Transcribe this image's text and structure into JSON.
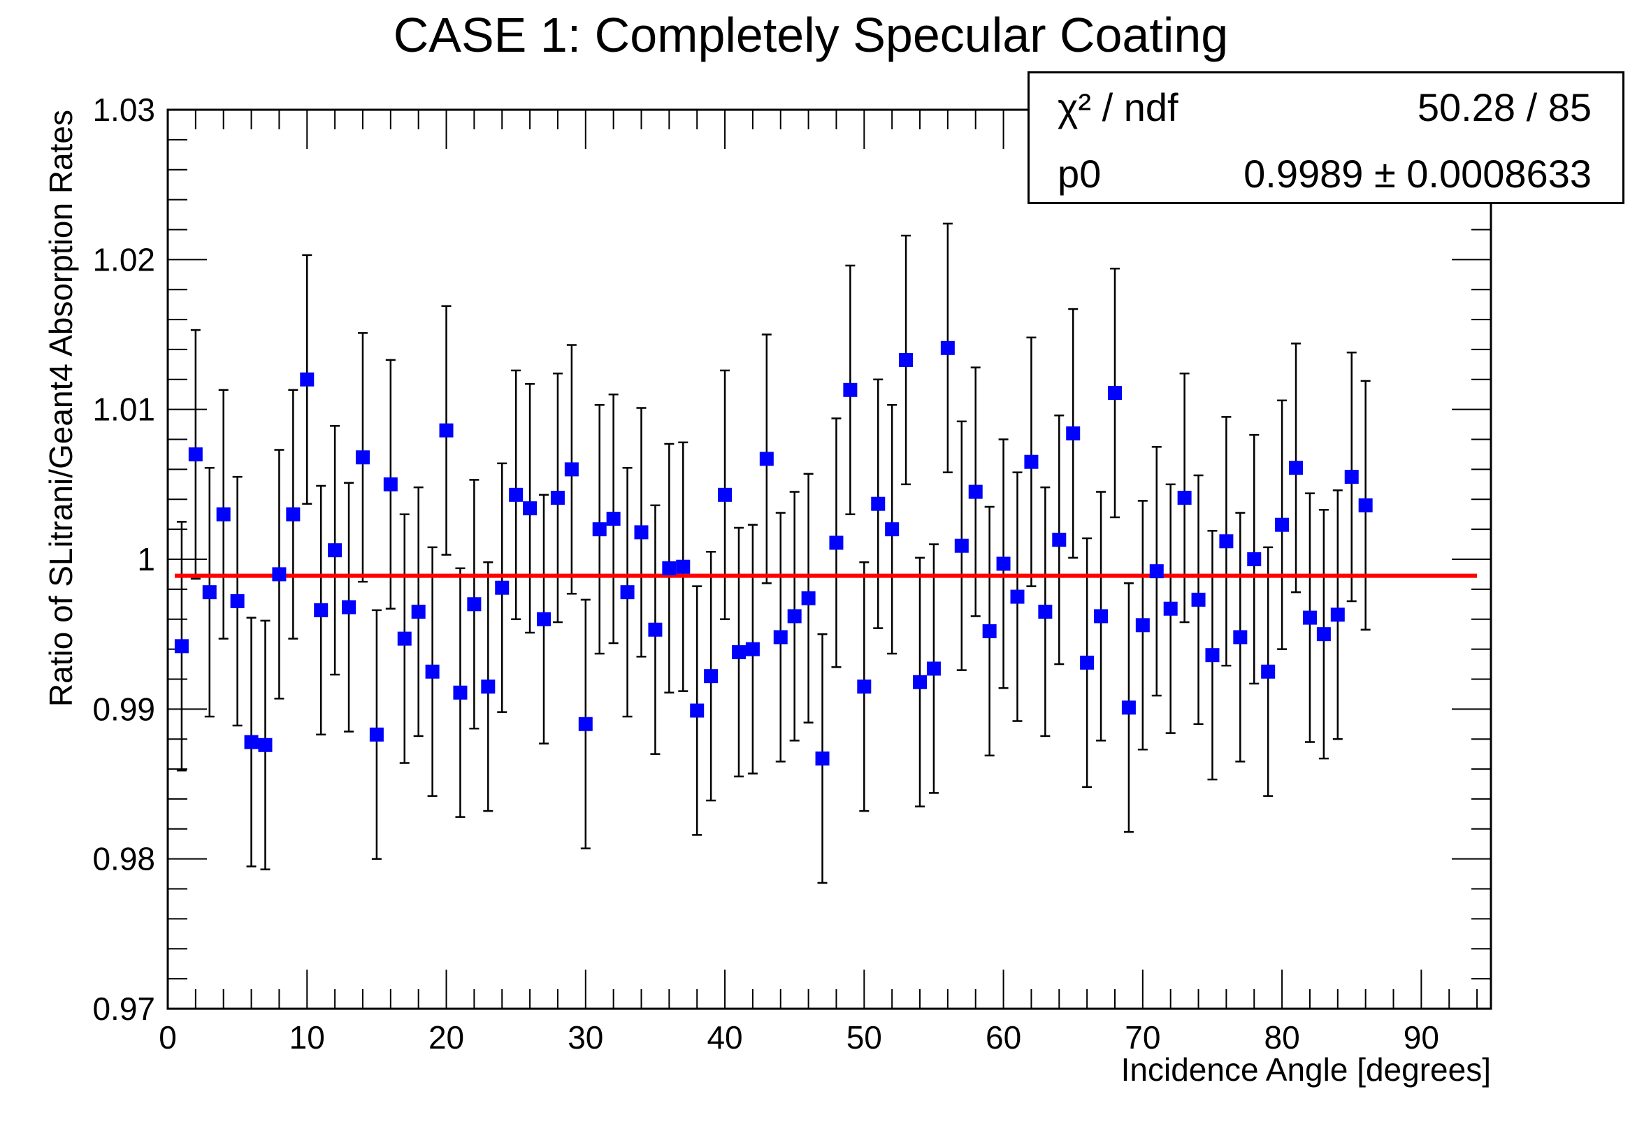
{
  "chart_data": {
    "type": "scatter",
    "title": "CASE 1: Completely Specular Coating",
    "xlabel": "Incidence Angle [degrees]",
    "ylabel": "Ratio of SLitrani/Geant4 Absorption Rates",
    "xlim": [
      0,
      95
    ],
    "ylim": [
      0.97,
      1.03
    ],
    "x_ticks": [
      "0",
      "10",
      "20",
      "30",
      "40",
      "50",
      "60",
      "70",
      "80",
      "90"
    ],
    "y_ticks": [
      "0.97",
      "0.98",
      "0.99",
      "1",
      "1.01",
      "1.02",
      "1.03"
    ],
    "marker_color": "#0000ff",
    "fit_color": "#ff0000",
    "error_bar": 0.0083,
    "points": [
      {
        "x": 1,
        "y": 0.9942
      },
      {
        "x": 2,
        "y": 1.007
      },
      {
        "x": 3,
        "y": 0.9978
      },
      {
        "x": 4,
        "y": 1.003
      },
      {
        "x": 5,
        "y": 0.9972
      },
      {
        "x": 6,
        "y": 0.9878
      },
      {
        "x": 7,
        "y": 0.9876
      },
      {
        "x": 8,
        "y": 0.999
      },
      {
        "x": 9,
        "y": 1.003
      },
      {
        "x": 10,
        "y": 1.012
      },
      {
        "x": 11,
        "y": 0.9966
      },
      {
        "x": 12,
        "y": 1.0006
      },
      {
        "x": 13,
        "y": 0.9968
      },
      {
        "x": 14,
        "y": 1.0068
      },
      {
        "x": 15,
        "y": 0.9883
      },
      {
        "x": 16,
        "y": 1.005
      },
      {
        "x": 17,
        "y": 0.9947
      },
      {
        "x": 18,
        "y": 0.9965
      },
      {
        "x": 19,
        "y": 0.9925
      },
      {
        "x": 20,
        "y": 1.0086
      },
      {
        "x": 21,
        "y": 0.9911
      },
      {
        "x": 22,
        "y": 0.997
      },
      {
        "x": 23,
        "y": 0.9915
      },
      {
        "x": 24,
        "y": 0.9981
      },
      {
        "x": 25,
        "y": 1.0043
      },
      {
        "x": 26,
        "y": 1.0034
      },
      {
        "x": 27,
        "y": 0.996
      },
      {
        "x": 28,
        "y": 1.0041
      },
      {
        "x": 29,
        "y": 1.006
      },
      {
        "x": 30,
        "y": 0.989
      },
      {
        "x": 31,
        "y": 1.002
      },
      {
        "x": 32,
        "y": 1.0027
      },
      {
        "x": 33,
        "y": 0.9978
      },
      {
        "x": 34,
        "y": 1.0018
      },
      {
        "x": 35,
        "y": 0.9953
      },
      {
        "x": 36,
        "y": 0.9994
      },
      {
        "x": 37,
        "y": 0.9995
      },
      {
        "x": 38,
        "y": 0.9899
      },
      {
        "x": 39,
        "y": 0.9922
      },
      {
        "x": 40,
        "y": 1.0043
      },
      {
        "x": 41,
        "y": 0.9938
      },
      {
        "x": 42,
        "y": 0.994
      },
      {
        "x": 43,
        "y": 1.0067
      },
      {
        "x": 44,
        "y": 0.9948
      },
      {
        "x": 45,
        "y": 0.9962
      },
      {
        "x": 46,
        "y": 0.9974
      },
      {
        "x": 47,
        "y": 0.9867
      },
      {
        "x": 48,
        "y": 1.0011
      },
      {
        "x": 49,
        "y": 1.0113
      },
      {
        "x": 50,
        "y": 0.9915
      },
      {
        "x": 51,
        "y": 1.0037
      },
      {
        "x": 52,
        "y": 1.002
      },
      {
        "x": 53,
        "y": 1.0133
      },
      {
        "x": 54,
        "y": 0.9918
      },
      {
        "x": 55,
        "y": 0.9927
      },
      {
        "x": 56,
        "y": 1.0141
      },
      {
        "x": 57,
        "y": 1.0009
      },
      {
        "x": 58,
        "y": 1.0045
      },
      {
        "x": 59,
        "y": 0.9952
      },
      {
        "x": 60,
        "y": 0.9997
      },
      {
        "x": 61,
        "y": 0.9975
      },
      {
        "x": 62,
        "y": 1.0065
      },
      {
        "x": 63,
        "y": 0.9965
      },
      {
        "x": 64,
        "y": 1.0013
      },
      {
        "x": 65,
        "y": 1.0084
      },
      {
        "x": 66,
        "y": 0.9931
      },
      {
        "x": 67,
        "y": 0.9962
      },
      {
        "x": 68,
        "y": 1.0111
      },
      {
        "x": 69,
        "y": 0.9901
      },
      {
        "x": 70,
        "y": 0.9956
      },
      {
        "x": 71,
        "y": 0.9992
      },
      {
        "x": 72,
        "y": 0.9967
      },
      {
        "x": 73,
        "y": 1.0041
      },
      {
        "x": 74,
        "y": 0.9973
      },
      {
        "x": 75,
        "y": 0.9936
      },
      {
        "x": 76,
        "y": 1.0012
      },
      {
        "x": 77,
        "y": 0.9948
      },
      {
        "x": 78,
        "y": 1.0
      },
      {
        "x": 79,
        "y": 0.9925
      },
      {
        "x": 80,
        "y": 1.0023
      },
      {
        "x": 81,
        "y": 1.0061
      },
      {
        "x": 82,
        "y": 0.9961
      },
      {
        "x": 83,
        "y": 0.995
      },
      {
        "x": 84,
        "y": 0.9963
      },
      {
        "x": 85,
        "y": 1.0055
      },
      {
        "x": 86,
        "y": 1.0036
      }
    ],
    "fit": {
      "type": "constant",
      "p0": 0.9989,
      "x_range": [
        0.5,
        94
      ]
    }
  },
  "stats": {
    "chi2_label": "χ² / ndf",
    "chi2_value": "50.28 / 85",
    "p0_label": "p0",
    "p0_value": "0.9989 ± 0.0008633"
  }
}
